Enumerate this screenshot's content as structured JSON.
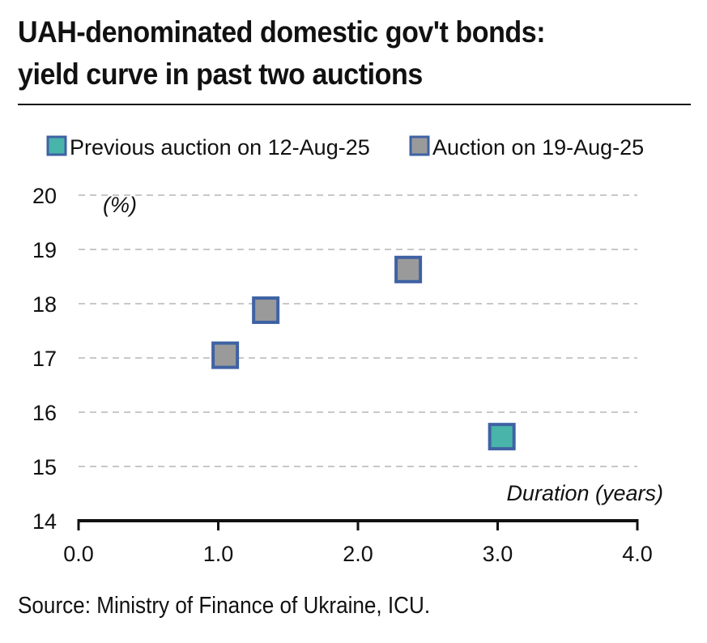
{
  "chart_data": {
    "type": "scatter",
    "title_lines": [
      "UAH-denominated domestic gov't bonds:",
      "yield curve in past two auctions"
    ],
    "ylabel": "(%)",
    "xlabel": "Duration (years)",
    "source": "Source: Ministry of Finance of Ukraine, ICU.",
    "xlim": [
      0.0,
      4.0
    ],
    "ylim": [
      14,
      20
    ],
    "x_ticks": [
      "0.0",
      "1.0",
      "2.0",
      "3.0",
      "4.0"
    ],
    "y_ticks": [
      "14",
      "15",
      "16",
      "17",
      "18",
      "19",
      "20"
    ],
    "grid": "horizontal-dashed",
    "legend_position": "top",
    "series": [
      {
        "name": "Previous auction on 12-Aug-25",
        "color": "#49b4aa",
        "edge_color": "#3f62a4",
        "points": [
          {
            "x": 3.03,
            "y": 15.55
          }
        ]
      },
      {
        "name": "Auction on 19-Aug-25",
        "color": "#9a9a9a",
        "edge_color": "#3f62a4",
        "points": [
          {
            "x": 1.05,
            "y": 17.05
          },
          {
            "x": 1.34,
            "y": 17.88
          },
          {
            "x": 2.36,
            "y": 18.63
          }
        ]
      }
    ]
  }
}
